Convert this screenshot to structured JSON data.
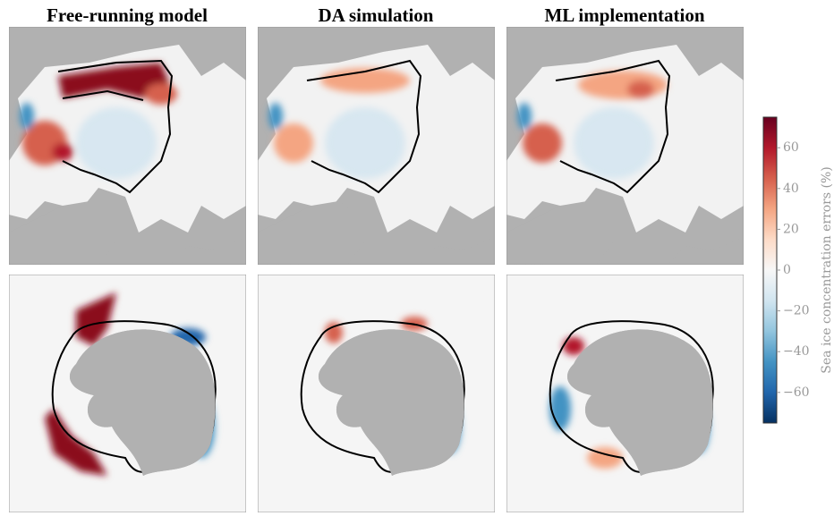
{
  "panels": {
    "titles": [
      "Free-running model",
      "DA simulation",
      "ML implementation"
    ]
  },
  "chart_data": {
    "type": "colorbar",
    "label": "Sea ice concentration errors (%)",
    "ylim": [
      -75,
      75
    ],
    "yticks": [
      {
        "value": -60,
        "label": "−60"
      },
      {
        "value": -40,
        "label": "−40"
      },
      {
        "value": -20,
        "label": "−20"
      },
      0,
      20,
      40,
      60
    ],
    "colors": [
      "#053061",
      "#2166ac",
      "#4393c3",
      "#92c5de",
      "#d1e5f0",
      "#f7f7f7",
      "#fddbc7",
      "#f4a582",
      "#d6604d",
      "#b2182b",
      "#67001f"
    ]
  }
}
